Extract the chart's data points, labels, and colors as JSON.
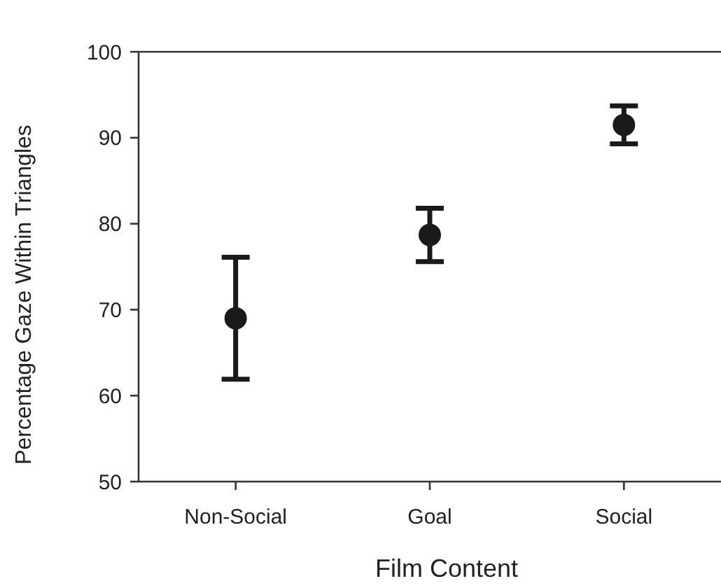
{
  "chart_data": {
    "type": "scatter",
    "xlabel": "Film Content",
    "ylabel": "Percentage Gaze Within Triangles",
    "categories": [
      "Non-Social",
      "Goal",
      "Social"
    ],
    "series": [
      {
        "color": "#1a1a1a",
        "values": [
          69.0,
          78.7,
          91.5
        ],
        "errors": [
          7.1,
          3.1,
          2.2
        ]
      }
    ],
    "ylim": [
      50,
      100
    ],
    "yticks": [
      50,
      60,
      70,
      80,
      90,
      100
    ],
    "marker": "circle",
    "grid": false
  }
}
